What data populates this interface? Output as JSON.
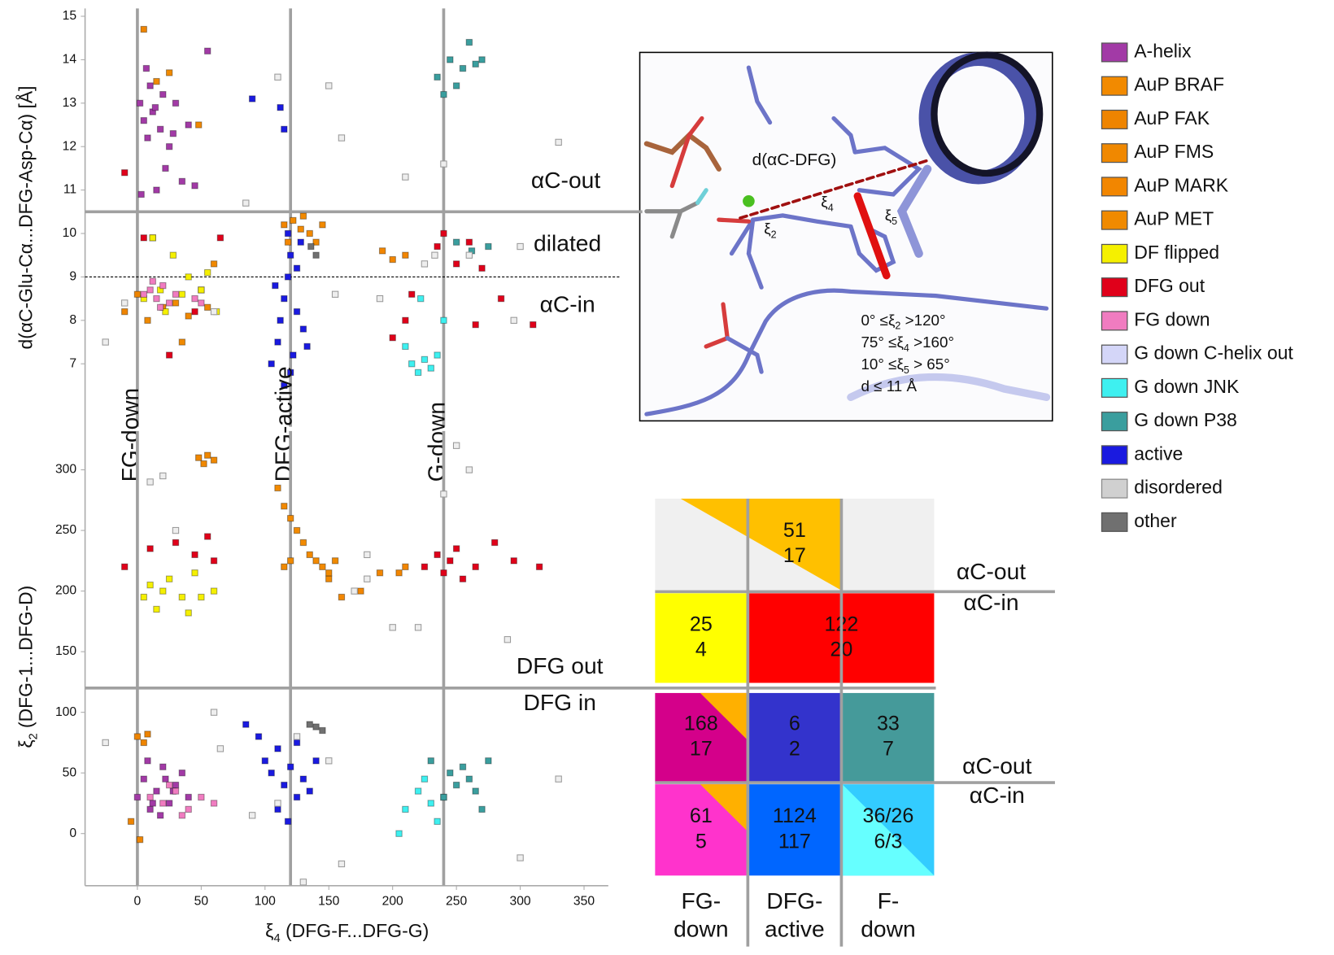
{
  "chart_data": [
    {
      "type": "scatter",
      "ylabel": "d(αC-Glu-Cα...DFG-Asp-Cα) [Å]",
      "xlim": [
        -41,
        369
      ],
      "ylim": [
        5.55,
        15.18
      ],
      "yticks": [
        7,
        8,
        9,
        10,
        11,
        12,
        13,
        14,
        15
      ],
      "vlines": [
        0,
        120,
        240
      ],
      "hlines": [
        10.5
      ],
      "dashed_hlines": [
        9
      ],
      "vline_labels": [
        "FG-down",
        "DFG-active",
        "G-down"
      ],
      "annotations": [
        "αC-out",
        "dilated",
        "αC-in"
      ],
      "series": [
        {
          "name": "A-helix",
          "color": "#a23aa6",
          "x": [
            2,
            5,
            8,
            10,
            12,
            15,
            18,
            20,
            25,
            30,
            35,
            40,
            45,
            55,
            3,
            7,
            14,
            22,
            28
          ],
          "y": [
            13.0,
            12.6,
            12.2,
            13.4,
            12.8,
            11.0,
            12.4,
            13.2,
            12.0,
            13.0,
            11.2,
            12.5,
            11.1,
            14.2,
            10.9,
            13.8,
            12.9,
            11.5,
            12.3
          ]
        },
        {
          "name": "AuP BRAF",
          "color": "#f28a00",
          "x": [
            122,
            128,
            135,
            140,
            145,
            130
          ],
          "y": [
            10.3,
            10.1,
            10.0,
            9.8,
            10.2,
            10.4
          ]
        },
        {
          "name": "AuP FAK",
          "color": "#ee8400",
          "x": [
            -10,
            0,
            5,
            12,
            20
          ],
          "y": [
            8.2,
            8.6,
            14.7,
            9.9,
            8.3
          ]
        },
        {
          "name": "AuP FMS",
          "color": "#f08800",
          "x": [
            40,
            50,
            55,
            60,
            48
          ],
          "y": [
            8.1,
            8.7,
            8.3,
            9.3,
            12.5
          ]
        },
        {
          "name": "AuP MARK",
          "color": "#f28600",
          "x": [
            192,
            200,
            210,
            115,
            118
          ],
          "y": [
            9.6,
            9.4,
            9.5,
            10.2,
            9.8
          ]
        },
        {
          "name": "AuP MET",
          "color": "#f08a00",
          "x": [
            8,
            15,
            25,
            30,
            35
          ],
          "y": [
            8.0,
            13.5,
            13.7,
            8.4,
            7.5
          ]
        },
        {
          "name": "DF flipped",
          "color": "#f5f000",
          "x": [
            5,
            12,
            18,
            22,
            28,
            35,
            40,
            50,
            55,
            62
          ],
          "y": [
            8.5,
            9.9,
            8.7,
            8.2,
            9.5,
            8.6,
            9.0,
            8.7,
            9.1,
            8.2
          ]
        },
        {
          "name": "DFG out",
          "color": "#e0001a",
          "x": [
            -10,
            5,
            25,
            45,
            65,
            210,
            235,
            240,
            250,
            260,
            270,
            265,
            310,
            200,
            215,
            285
          ],
          "y": [
            11.4,
            9.9,
            7.2,
            8.2,
            9.9,
            8.0,
            9.7,
            10.0,
            9.3,
            9.8,
            9.2,
            7.9,
            7.9,
            7.6,
            8.6,
            8.5
          ]
        },
        {
          "name": "FG down",
          "color": "#f07cc0",
          "x": [
            5,
            10,
            15,
            20,
            25,
            30,
            45,
            50,
            12,
            18
          ],
          "y": [
            8.6,
            8.7,
            8.5,
            8.8,
            8.4,
            8.6,
            8.5,
            8.4,
            8.9,
            8.3
          ]
        },
        {
          "name": "G down C-helix out",
          "color": "#d4d6f8",
          "x": [],
          "y": []
        },
        {
          "name": "G down JNK",
          "color": "#3ef0f0",
          "x": [
            215,
            220,
            225,
            230,
            235,
            210,
            240,
            222
          ],
          "y": [
            7.0,
            6.8,
            7.1,
            6.9,
            7.2,
            7.4,
            8.0,
            8.5
          ]
        },
        {
          "name": "G down P38",
          "color": "#3a9e9e",
          "x": [
            235,
            240,
            245,
            250,
            255,
            260,
            265,
            270,
            275,
            250,
            262
          ],
          "y": [
            13.6,
            13.2,
            14.0,
            13.4,
            13.8,
            14.4,
            13.9,
            14.0,
            9.7,
            9.8,
            9.6
          ]
        },
        {
          "name": "active",
          "color": "#1a1ae0",
          "x": [
            105,
            110,
            112,
            115,
            118,
            120,
            122,
            125,
            128,
            130,
            115,
            120,
            108,
            125,
            118,
            133,
            90,
            112,
            115
          ],
          "y": [
            7.0,
            7.5,
            8.0,
            8.5,
            9.0,
            9.5,
            7.2,
            8.2,
            9.8,
            7.8,
            6.5,
            6.8,
            8.8,
            9.2,
            10.0,
            7.4,
            13.1,
            12.9,
            12.4
          ]
        },
        {
          "name": "disordered",
          "color": "#d0d0d0",
          "x": [
            -25,
            -10,
            60,
            85,
            110,
            150,
            160,
            210,
            240,
            260,
            295,
            300,
            330,
            155,
            190,
            225,
            233
          ],
          "y": [
            7.5,
            8.4,
            8.2,
            10.7,
            13.6,
            13.4,
            12.2,
            11.3,
            11.6,
            9.5,
            8.0,
            9.7,
            12.1,
            8.6,
            8.5,
            9.3,
            9.5
          ]
        },
        {
          "name": "other",
          "color": "#707070",
          "x": [
            136,
            140
          ],
          "y": [
            9.7,
            9.5
          ]
        }
      ]
    },
    {
      "type": "scatter",
      "ylabel": {
        "symbol": "ξ",
        "sub": "2",
        "text": " (DFG-1...DFG-D)"
      },
      "xlabel": {
        "symbol": "ξ",
        "sub": "4",
        "text": " (DFG-F...DFG-G)"
      },
      "xlim": [
        -41,
        369
      ],
      "ylim": [
        -43,
        332
      ],
      "xticks": [
        0,
        50,
        100,
        150,
        200,
        250,
        300,
        350
      ],
      "yticks": [
        0,
        50,
        100,
        150,
        200,
        250,
        300
      ],
      "vlines": [
        0,
        120,
        240
      ],
      "hlines": [
        120
      ],
      "annotations": [
        "DFG out",
        "DFG in"
      ],
      "series": [
        {
          "name": "A-helix",
          "color": "#a23aa6",
          "x": [
            0,
            5,
            10,
            15,
            20,
            25,
            30,
            35,
            40,
            8,
            18,
            28,
            12,
            22
          ],
          "y": [
            30,
            45,
            20,
            35,
            55,
            25,
            40,
            50,
            30,
            60,
            15,
            35,
            25,
            45
          ]
        },
        {
          "name": "AuP BRAF",
          "color": "#f28a00",
          "x": [
            110,
            115,
            120,
            125,
            130,
            135,
            140,
            145,
            150
          ],
          "y": [
            285,
            270,
            260,
            250,
            240,
            230,
            225,
            220,
            210
          ]
        },
        {
          "name": "AuP FAK",
          "color": "#ee8400",
          "x": [
            0,
            5,
            8,
            -5,
            2
          ],
          "y": [
            80,
            75,
            82,
            10,
            -5
          ]
        },
        {
          "name": "AuP FMS",
          "color": "#f08800",
          "x": [
            48,
            52,
            55,
            60
          ],
          "y": [
            310,
            305,
            312,
            308
          ]
        },
        {
          "name": "AuP MARK",
          "color": "#f28600",
          "x": [
            160,
            175,
            190,
            205,
            210
          ],
          "y": [
            195,
            200,
            215,
            215,
            220
          ]
        },
        {
          "name": "AuP MET",
          "color": "#f08a00",
          "x": [
            115,
            120,
            150,
            155
          ],
          "y": [
            220,
            225,
            215,
            225
          ]
        },
        {
          "name": "DF flipped",
          "color": "#f5f000",
          "x": [
            5,
            10,
            15,
            20,
            25,
            35,
            40,
            45,
            50,
            60
          ],
          "y": [
            195,
            205,
            185,
            200,
            210,
            195,
            182,
            215,
            195,
            200
          ]
        },
        {
          "name": "DFG out",
          "color": "#e0001a",
          "x": [
            -10,
            10,
            30,
            45,
            55,
            60,
            225,
            235,
            240,
            245,
            250,
            255,
            265,
            280,
            295,
            315
          ],
          "y": [
            220,
            235,
            240,
            230,
            245,
            225,
            220,
            230,
            215,
            225,
            235,
            210,
            220,
            240,
            225,
            220
          ]
        },
        {
          "name": "FG down",
          "color": "#f07cc0",
          "x": [
            10,
            20,
            30,
            40,
            50,
            60,
            25,
            35
          ],
          "y": [
            30,
            25,
            35,
            20,
            30,
            25,
            40,
            15
          ]
        },
        {
          "name": "G down C-helix out",
          "color": "#d4d6f8",
          "x": [],
          "y": []
        },
        {
          "name": "G down JNK",
          "color": "#3ef0f0",
          "x": [
            205,
            210,
            220,
            225,
            230,
            235,
            240
          ],
          "y": [
            0,
            20,
            35,
            45,
            25,
            10,
            30
          ]
        },
        {
          "name": "G down P38",
          "color": "#3a9e9e",
          "x": [
            240,
            245,
            250,
            255,
            260,
            265,
            270,
            275,
            230
          ],
          "y": [
            30,
            50,
            40,
            55,
            45,
            35,
            20,
            60,
            60
          ]
        },
        {
          "name": "active",
          "color": "#1a1ae0",
          "x": [
            85,
            95,
            100,
            105,
            110,
            115,
            120,
            125,
            130,
            135,
            140,
            110,
            118,
            125
          ],
          "y": [
            90,
            80,
            60,
            50,
            70,
            40,
            55,
            30,
            45,
            35,
            60,
            20,
            10,
            75
          ]
        },
        {
          "name": "disordered",
          "color": "#d0d0d0",
          "x": [
            -25,
            10,
            20,
            30,
            60,
            65,
            90,
            110,
            130,
            150,
            160,
            180,
            200,
            220,
            240,
            250,
            260,
            290,
            300,
            330,
            180,
            125,
            170
          ],
          "y": [
            75,
            290,
            295,
            250,
            100,
            70,
            15,
            25,
            -40,
            60,
            -25,
            230,
            170,
            170,
            280,
            320,
            300,
            160,
            -20,
            45,
            210,
            80,
            200
          ]
        },
        {
          "name": "other",
          "color": "#707070",
          "x": [
            135,
            140,
            145
          ],
          "y": [
            90,
            88,
            85
          ]
        }
      ]
    }
  ],
  "structure_panel": {
    "distance_label": "d(αC-DFG)",
    "angle_labels": [
      {
        "symbol": "ξ",
        "sub": "4"
      },
      {
        "symbol": "ξ",
        "sub": "5"
      },
      {
        "symbol": "ξ",
        "sub": "2"
      }
    ],
    "criteria": [
      {
        "pre": "0°  ≤ξ",
        "sub": "2",
        "post": " >120°"
      },
      {
        "pre": "75°  ≤ξ",
        "sub": "4",
        "post": " >160°"
      },
      {
        "pre": "10°  ≤ξ",
        "sub": "5",
        "post": " > 65°"
      },
      {
        "pre": "d ≤ 11 Å",
        "sub": "",
        "post": ""
      }
    ]
  },
  "count_grid": {
    "column_labels": [
      [
        "FG-",
        "down"
      ],
      [
        "DFG-",
        "active"
      ],
      [
        "F-",
        "down"
      ]
    ],
    "row_labels": [
      "αC-out",
      "αC-in",
      "αC-out",
      "αC-in"
    ],
    "cells": [
      {
        "lines": [
          51,
          17
        ],
        "color": "#ffc000"
      },
      {
        "lines": [
          25,
          4
        ],
        "color": "#ffff00"
      },
      {
        "lines": [
          122,
          20
        ],
        "color": "#ff0000"
      },
      {
        "lines": [
          168,
          17
        ],
        "color": "#d4008a"
      },
      {
        "lines": [
          6,
          2
        ],
        "color": "#3333cc"
      },
      {
        "lines": [
          33,
          7
        ],
        "color": "#459a9a"
      },
      {
        "lines": [
          61,
          5
        ],
        "color": "#ff33cc"
      },
      {
        "lines": [
          1124,
          117
        ],
        "color": "#0066ff"
      },
      {
        "lines": [
          "36/26",
          "6/3"
        ],
        "color": "#33ccff"
      }
    ]
  }
}
